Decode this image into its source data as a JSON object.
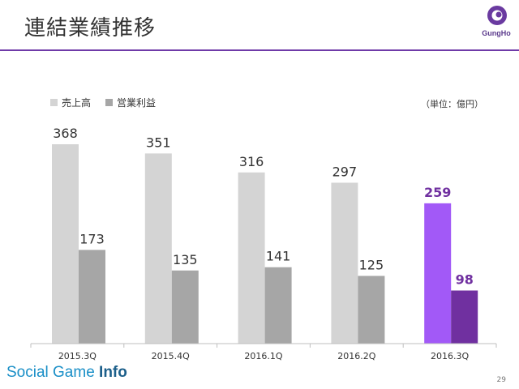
{
  "slide": {
    "title": "連結業績推移",
    "brand_prefix": "Social Game ",
    "brand_suffix": "Info",
    "page_number": "29",
    "logo_text": "GungHo"
  },
  "chart_data": {
    "type": "bar",
    "unit_label": "（単位：億円）",
    "categories": [
      "2015.3Q",
      "2015.4Q",
      "2016.1Q",
      "2016.2Q",
      "2016.3Q"
    ],
    "series": [
      {
        "name": "売上高",
        "values": [
          368,
          351,
          316,
          297,
          259
        ],
        "color": "#d4d4d4",
        "highlight_color": "#a259f7"
      },
      {
        "name": "営業利益",
        "values": [
          173,
          135,
          141,
          125,
          98
        ],
        "color": "#a6a6a6",
        "highlight_color": "#7030a0"
      }
    ],
    "highlight_index": 4,
    "highlight_label_color": "#7030a0",
    "ylim": [
      0,
      400
    ],
    "grid": false,
    "legend_position": "top-left"
  }
}
